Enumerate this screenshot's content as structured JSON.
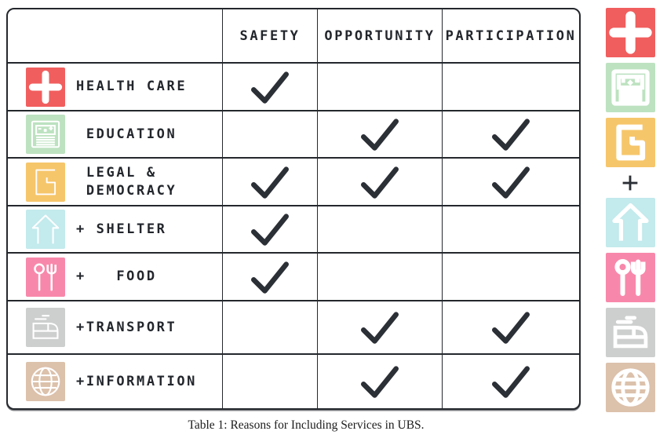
{
  "caption": "Table 1: Reasons for Including Services in UBS.",
  "columns": [
    "SAFETY",
    "OPPORTUNITY",
    "PARTICIPATION"
  ],
  "rows": [
    {
      "icon": "health-cross",
      "color": "#f15e5e",
      "lines": [
        "HEALTH CARE"
      ],
      "checks": [
        true,
        false,
        false
      ]
    },
    {
      "icon": "education-board",
      "color": "#bde2c0",
      "lines": [
        " EDUCATION"
      ],
      "checks": [
        false,
        true,
        true
      ]
    },
    {
      "icon": "legal-gavel",
      "color": "#f6c66b",
      "lines": [
        " LEGAL &",
        " DEMOCRACY"
      ],
      "checks": [
        true,
        true,
        true
      ]
    },
    {
      "icon": "shelter-house",
      "color": "#c3eaed",
      "lines": [
        "+ SHELTER"
      ],
      "checks": [
        true,
        false,
        false
      ]
    },
    {
      "icon": "food-cutlery",
      "color": "#f888ab",
      "lines": [
        "+   FOOD"
      ],
      "checks": [
        true,
        false,
        false
      ]
    },
    {
      "icon": "transport-tram",
      "color": "#cdcfce",
      "lines": [
        "+TRANSPORT"
      ],
      "checks": [
        false,
        true,
        true
      ]
    },
    {
      "icon": "information-globe",
      "color": "#dcc1ab",
      "lines": [
        "+INFORMATION"
      ],
      "checks": [
        false,
        true,
        true
      ]
    }
  ],
  "sidebar": {
    "items": [
      {
        "icon": "health-cross",
        "color": "#f15e5e"
      },
      {
        "icon": "education-board",
        "color": "#bde2c0"
      },
      {
        "icon": "legal-gavel",
        "color": "#f6c66b"
      },
      {
        "type": "separator",
        "glyph": "+"
      },
      {
        "icon": "shelter-house",
        "color": "#c3eaed"
      },
      {
        "icon": "food-cutlery",
        "color": "#f888ab"
      },
      {
        "icon": "transport-tram",
        "color": "#cdcfce"
      },
      {
        "icon": "information-globe",
        "color": "#dcc1ab"
      }
    ]
  },
  "colors": {
    "ink": "#22262c",
    "table_border": "#24282d",
    "check": "#2b2f36"
  }
}
